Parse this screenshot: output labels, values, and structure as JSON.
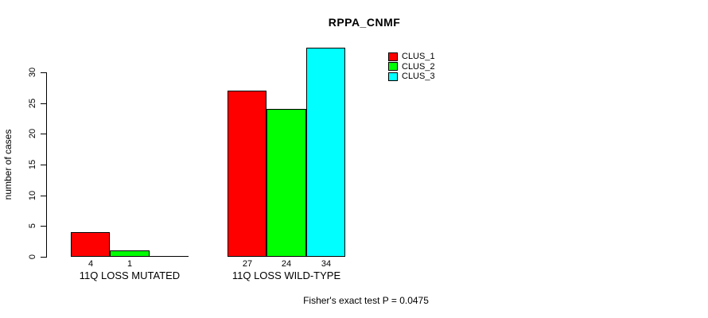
{
  "chart_data": {
    "type": "bar",
    "title": "RPPA_CNMF",
    "xlabel": "",
    "ylabel": "number of cases",
    "annotation": "Fisher's exact test P = 0.0475",
    "categories": [
      "11Q LOSS MUTATED",
      "11Q LOSS WILD-TYPE"
    ],
    "series": [
      {
        "name": "CLUS_1",
        "color": "#FF0000",
        "values": [
          4,
          27
        ]
      },
      {
        "name": "CLUS_2",
        "color": "#00FF00",
        "values": [
          1,
          24
        ]
      },
      {
        "name": "CLUS_3",
        "color": "#00FFFF",
        "values": [
          0,
          34
        ]
      }
    ],
    "yticks": [
      0,
      5,
      10,
      15,
      20,
      25,
      30
    ],
    "ylim": [
      0,
      30
    ],
    "grid": false,
    "legend_position": "top-right",
    "bar_value_labels_shown_for_nonzero_only": true
  },
  "legend": {
    "items": [
      {
        "label": "CLUS_1",
        "color": "#FF0000"
      },
      {
        "label": "CLUS_2",
        "color": "#00FF00"
      },
      {
        "label": "CLUS_3",
        "color": "#00FFFF"
      }
    ]
  }
}
